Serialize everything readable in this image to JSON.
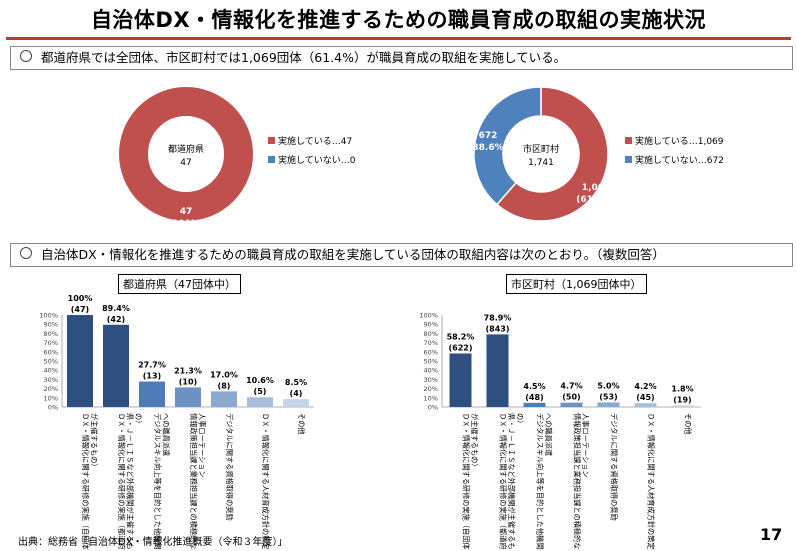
{
  "title": "自治体DX・情報化を推進するための職員育成の取組の実施状況",
  "summary_top": "都道府県では全団体、市区町村では1,069団体（61.4%）が職員育成の取組を実施している。",
  "summary_bottom": "自治体DX・情報化を推進するための職員育成の取組を実施している団体の取組内容は次のとおり。（複数回答）",
  "footer": "出典：総務省「自治体DX・情報化推進概要（令和３年度）」",
  "page_number": "17",
  "colors": {
    "implemented": "#c0504d",
    "not_implemented": "#4f81bd",
    "bar_dark": "#2e4f7f",
    "bar_light": "#c7d3e6",
    "accent_line": "#c0392b"
  },
  "chart_data": [
    {
      "type": "pie",
      "center_label": [
        "都道府県",
        "47"
      ],
      "slices": [
        {
          "legend": "実施している…47",
          "value": 47,
          "labels": [
            "47",
            "(100%)"
          ]
        },
        {
          "legend": "実施していない…0",
          "value": 0,
          "labels": []
        }
      ],
      "legend_position": "right"
    },
    {
      "type": "pie",
      "center_label": [
        "市区町村",
        "1,741"
      ],
      "slices": [
        {
          "legend": "実施している…1,069",
          "value": 1069,
          "labels": [
            "1,069",
            "(61.4%)"
          ]
        },
        {
          "legend": "実施していない…672",
          "value": 672,
          "labels": [
            "672",
            "(38.6%)"
          ]
        }
      ],
      "legend_position": "right"
    },
    {
      "type": "bar",
      "title": "都道府県（47団体中）",
      "ylim": [
        0,
        100
      ],
      "yticks": [
        "0%",
        "10%",
        "20%",
        "30%",
        "40%",
        "50%",
        "60%",
        "70%",
        "80%",
        "90%",
        "100%"
      ],
      "grid": false,
      "categories": [
        "ＤＸ・情報化に関する研修の実施（自団体が主催するもの）",
        "ＤＸ・情報化に関する研修の実施（都道府県・Ｊ－ＬＩＳなど外部機関が主催するもの）",
        "デジタルスキル向上等を目的とした他機関への職員派遣",
        "情報政策担当課と業務担当課との積極的な人事ローテーション",
        "デジタルに関する資格取得の奨励",
        "ＤＸ・情報化に関する人材育成方針の策定",
        "その他"
      ],
      "values": [
        100,
        89.4,
        27.7,
        21.3,
        17.0,
        10.6,
        8.5
      ],
      "value_labels": [
        "100%",
        "89.4%",
        "27.7%",
        "21.3%",
        "17.0%",
        "10.6%",
        "8.5%"
      ],
      "count_labels": [
        "(47)",
        "(42)",
        "(13)",
        "(10)",
        "(8)",
        "(5)",
        "(4)"
      ]
    },
    {
      "type": "bar",
      "title": "市区町村（1,069団体中）",
      "ylim": [
        0,
        100
      ],
      "yticks": [
        "0%",
        "10%",
        "20%",
        "30%",
        "40%",
        "50%",
        "60%",
        "70%",
        "80%",
        "90%",
        "100%"
      ],
      "grid": false,
      "categories": [
        "ＤＸ・情報化に関する研修の実施（自団体が主催するもの）",
        "ＤＸ・情報化に関する研修の実施（都道府県・Ｊ－ＬＩＳなど外部機関が主催するもの）",
        "デジタルスキル向上等を目的とした他機関への職員派遣",
        "情報政策担当課と業務担当課との積極的な人事ローテーション",
        "デジタルに関する資格取得の奨励",
        "ＤＸ・情報化に関する人材育成方針の策定",
        "その他"
      ],
      "values": [
        58.2,
        78.9,
        4.5,
        4.7,
        5.0,
        4.2,
        1.8
      ],
      "value_labels": [
        "58.2%",
        "78.9%",
        "4.5%",
        "4.7%",
        "5.0%",
        "4.2%",
        "1.8%"
      ],
      "count_labels": [
        "(622)",
        "(843)",
        "(48)",
        "(50)",
        "(53)",
        "(45)",
        "(19)"
      ]
    }
  ]
}
